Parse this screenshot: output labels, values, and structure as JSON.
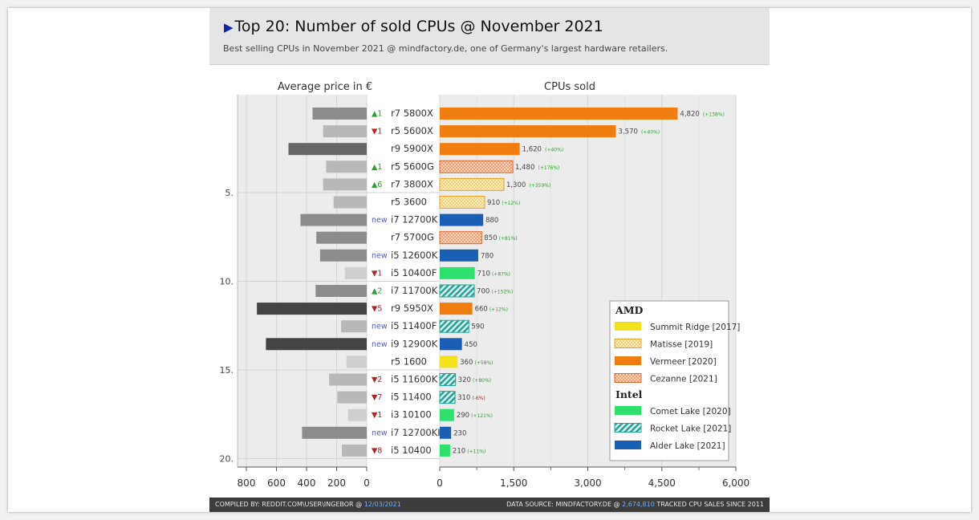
{
  "header": {
    "title": "Top 20: Number of sold CPUs  @ November 2021",
    "subtitle": "Best selling CPUs in November 2021 @ mindfactory.de, one of Germany's largest hardware retailers."
  },
  "footer": {
    "left_prefix": "COMPILED BY: REDDIT.COM\\USER\\INGEBOR @ ",
    "left_date": "12/03/2021",
    "right_prefix": "DATA SOURCE: MINDFACTORY.DE @ ",
    "right_count": "2,674,810",
    "right_suffix": " TRACKED CPU SALES SINCE 2011"
  },
  "chart_data": {
    "type": "bar",
    "left_panel": {
      "title": "Average price in €",
      "ticks": [
        800,
        600,
        400,
        200,
        0
      ],
      "xlim": [
        0,
        800
      ]
    },
    "right_panel": {
      "title": "CPUs sold",
      "ticks": [
        "0",
        "1,500",
        "3,000",
        "4,500",
        "6,000"
      ],
      "xlim": [
        0,
        6000
      ]
    },
    "rank_ticks": [
      "5.",
      "10.",
      "15.",
      "20."
    ],
    "colors": {
      "Summit Ridge": "#f2e21b",
      "Matisse": "#f6c447",
      "Vermeer": "#f07d0f",
      "Cezanne": "#f07d0f",
      "Comet Lake": "#2ee06e",
      "Rocket Lake": "#22a59a",
      "Alder Lake": "#1a5fb4",
      "up": "#2ca02c",
      "down": "#b22222",
      "new": "#5656c8"
    },
    "rows": [
      {
        "name": "r7 5800X",
        "sold": 4820,
        "sold_label": "4,820",
        "change": "(+138%)",
        "change_dir": "up",
        "rank_change": "▲1",
        "rank_dir": "up",
        "price": 360,
        "price_shade": "mid",
        "arch": "Vermeer"
      },
      {
        "name": "r5 5600X",
        "sold": 3570,
        "sold_label": "3,570",
        "change": "(+40%)",
        "change_dir": "up",
        "rank_change": "▼1",
        "rank_dir": "down",
        "price": 290,
        "price_shade": "light",
        "arch": "Vermeer"
      },
      {
        "name": "r9 5900X",
        "sold": 1620,
        "sold_label": "1,620",
        "change": "(+40%)",
        "change_dir": "up",
        "rank_change": "",
        "rank_dir": "",
        "price": 520,
        "price_shade": "dark",
        "arch": "Vermeer"
      },
      {
        "name": "r5 5600G",
        "sold": 1480,
        "sold_label": "1,480",
        "change": "(+176%)",
        "change_dir": "up",
        "rank_change": "▲1",
        "rank_dir": "up",
        "price": 270,
        "price_shade": "light",
        "arch": "Cezanne"
      },
      {
        "name": "r7 3800X",
        "sold": 1300,
        "sold_label": "1,300",
        "change": "(+359%)",
        "change_dir": "up",
        "rank_change": "▲6",
        "rank_dir": "up",
        "price": 290,
        "price_shade": "light",
        "arch": "Matisse"
      },
      {
        "name": "r5 3600",
        "sold": 910,
        "sold_label": "910",
        "change": "(+12%)",
        "change_dir": "up",
        "rank_change": "",
        "rank_dir": "",
        "price": 220,
        "price_shade": "light",
        "arch": "Matisse"
      },
      {
        "name": "i7 12700K",
        "sold": 880,
        "sold_label": "880",
        "change": "",
        "change_dir": "",
        "rank_change": "new",
        "rank_dir": "new",
        "price": 440,
        "price_shade": "mid",
        "arch": "Alder Lake"
      },
      {
        "name": "r7 5700G",
        "sold": 850,
        "sold_label": "850",
        "change": "(+81%)",
        "change_dir": "up",
        "rank_change": "",
        "rank_dir": "",
        "price": 335,
        "price_shade": "mid",
        "arch": "Cezanne"
      },
      {
        "name": "i5 12600K",
        "sold": 780,
        "sold_label": "780",
        "change": "",
        "change_dir": "",
        "rank_change": "new",
        "rank_dir": "new",
        "price": 310,
        "price_shade": "mid",
        "arch": "Alder Lake"
      },
      {
        "name": "i5 10400F",
        "sold": 710,
        "sold_label": "710",
        "change": "(+87%)",
        "change_dir": "up",
        "rank_change": "▼1",
        "rank_dir": "down",
        "price": 145,
        "price_shade": "vlight",
        "arch": "Comet Lake"
      },
      {
        "name": "i7 11700K",
        "sold": 700,
        "sold_label": "700",
        "change": "(+152%)",
        "change_dir": "up",
        "rank_change": "▲2",
        "rank_dir": "up",
        "price": 340,
        "price_shade": "mid",
        "arch": "Rocket Lake"
      },
      {
        "name": "r9 5950X",
        "sold": 660,
        "sold_label": "660",
        "change": "(+12%)",
        "change_dir": "up",
        "rank_change": "▼5",
        "rank_dir": "down",
        "price": 730,
        "price_shade": "vdark",
        "arch": "Vermeer"
      },
      {
        "name": "i5 11400F",
        "sold": 590,
        "sold_label": "590",
        "change": "",
        "change_dir": "",
        "rank_change": "new",
        "rank_dir": "new",
        "price": 170,
        "price_shade": "light",
        "arch": "Rocket Lake"
      },
      {
        "name": "i9 12900K",
        "sold": 450,
        "sold_label": "450",
        "change": "",
        "change_dir": "",
        "rank_change": "new",
        "rank_dir": "new",
        "price": 670,
        "price_shade": "vdark",
        "arch": "Alder Lake"
      },
      {
        "name": "r5 1600",
        "sold": 360,
        "sold_label": "360",
        "change": "(+58%)",
        "change_dir": "up",
        "rank_change": "",
        "rank_dir": "",
        "price": 135,
        "price_shade": "vlight",
        "arch": "Summit Ridge"
      },
      {
        "name": "i5 11600K",
        "sold": 320,
        "sold_label": "320",
        "change": "(+80%)",
        "change_dir": "up",
        "rank_change": "▼2",
        "rank_dir": "down",
        "price": 250,
        "price_shade": "light",
        "arch": "Rocket Lake"
      },
      {
        "name": "i5 11400",
        "sold": 310,
        "sold_label": "310",
        "change": "(-6%)",
        "change_dir": "down",
        "rank_change": "▼7",
        "rank_dir": "down",
        "price": 195,
        "price_shade": "light",
        "arch": "Rocket Lake"
      },
      {
        "name": "i3 10100",
        "sold": 290,
        "sold_label": "290",
        "change": "(+121%)",
        "change_dir": "up",
        "rank_change": "▼1",
        "rank_dir": "down",
        "price": 125,
        "price_shade": "vlight",
        "arch": "Comet Lake"
      },
      {
        "name": "i7 12700KF",
        "sold": 230,
        "sold_label": "230",
        "change": "",
        "change_dir": "",
        "rank_change": "new",
        "rank_dir": "new",
        "price": 430,
        "price_shade": "mid",
        "arch": "Alder Lake"
      },
      {
        "name": "i5 10400",
        "sold": 210,
        "sold_label": "210",
        "change": "(+11%)",
        "change_dir": "up",
        "rank_change": "▼8",
        "rank_dir": "down",
        "price": 165,
        "price_shade": "light",
        "arch": "Comet Lake"
      }
    ],
    "legend": {
      "groups": [
        {
          "title": "AMD",
          "items": [
            {
              "label": "Summit Ridge [2017]",
              "arch": "Summit Ridge",
              "pattern": "solid"
            },
            {
              "label": "Matisse [2019]",
              "arch": "Matisse",
              "pattern": "dots"
            },
            {
              "label": "Vermeer [2020]",
              "arch": "Vermeer",
              "pattern": "solid"
            },
            {
              "label": "Cezanne [2021]",
              "arch": "Cezanne",
              "pattern": "dots"
            }
          ]
        },
        {
          "title": "Intel",
          "items": [
            {
              "label": "Comet Lake [2020]",
              "arch": "Comet Lake",
              "pattern": "solid"
            },
            {
              "label": "Rocket Lake [2021]",
              "arch": "Rocket Lake",
              "pattern": "hatch"
            },
            {
              "label": "Alder Lake [2021]",
              "arch": "Alder Lake",
              "pattern": "solid"
            }
          ]
        }
      ]
    }
  }
}
